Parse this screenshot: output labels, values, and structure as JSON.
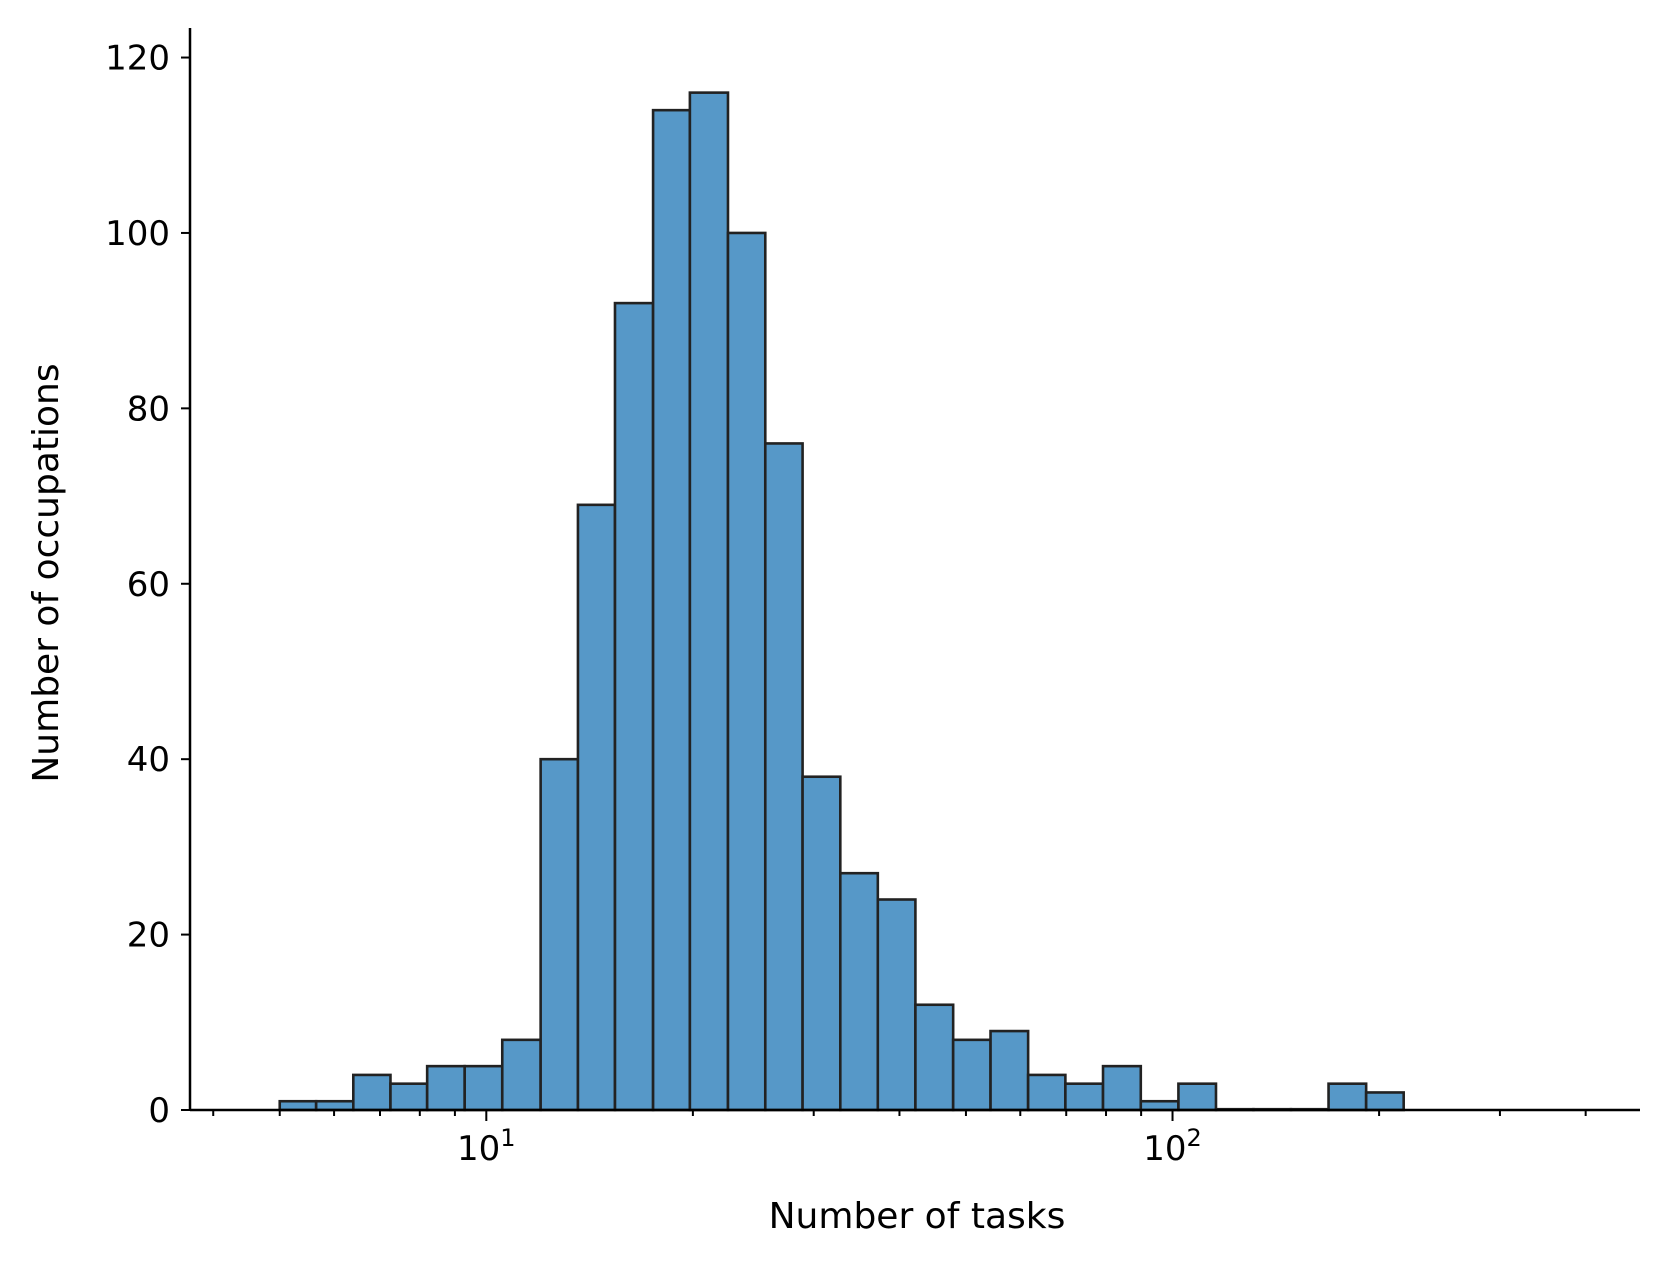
{
  "chart_data": {
    "type": "bar",
    "title": "",
    "xlabel": "Number of tasks",
    "ylabel": "Number of occupations",
    "x_scale": "log",
    "xlim": [
      3.7,
      480
    ],
    "ylim": [
      0,
      122
    ],
    "y_ticks": [
      0,
      20,
      40,
      60,
      80,
      100,
      120
    ],
    "x_major_ticks": [
      {
        "value": 10,
        "base": "10",
        "exp": "1"
      },
      {
        "value": 100,
        "base": "10",
        "exp": "2"
      }
    ],
    "x_minor_ticks": [
      4,
      5,
      6,
      7,
      8,
      9,
      20,
      30,
      40,
      50,
      60,
      70,
      80,
      90,
      200,
      300,
      400
    ],
    "grid": false,
    "legend": "none",
    "bar_color": "#5698c8",
    "edge_color": "#222222",
    "bins": [
      {
        "x0": 5.0,
        "x1": 5.65,
        "count": 1
      },
      {
        "x0": 5.65,
        "x1": 6.4,
        "count": 1
      },
      {
        "x0": 6.4,
        "x1": 7.25,
        "count": 4
      },
      {
        "x0": 7.25,
        "x1": 8.2,
        "count": 3
      },
      {
        "x0": 8.2,
        "x1": 9.3,
        "count": 5
      },
      {
        "x0": 9.3,
        "x1": 10.55,
        "count": 5
      },
      {
        "x0": 10.55,
        "x1": 12.0,
        "count": 8
      },
      {
        "x0": 12.0,
        "x1": 13.6,
        "count": 40
      },
      {
        "x0": 13.6,
        "x1": 15.4,
        "count": 69
      },
      {
        "x0": 15.4,
        "x1": 17.5,
        "count": 92
      },
      {
        "x0": 17.5,
        "x1": 19.8,
        "count": 114
      },
      {
        "x0": 19.8,
        "x1": 22.5,
        "count": 116
      },
      {
        "x0": 22.5,
        "x1": 25.5,
        "count": 100
      },
      {
        "x0": 25.5,
        "x1": 28.9,
        "count": 76
      },
      {
        "x0": 28.9,
        "x1": 32.8,
        "count": 38
      },
      {
        "x0": 32.8,
        "x1": 37.2,
        "count": 27
      },
      {
        "x0": 37.2,
        "x1": 42.2,
        "count": 24
      },
      {
        "x0": 42.2,
        "x1": 47.9,
        "count": 12
      },
      {
        "x0": 47.9,
        "x1": 54.3,
        "count": 8
      },
      {
        "x0": 54.3,
        "x1": 61.6,
        "count": 9
      },
      {
        "x0": 61.6,
        "x1": 69.8,
        "count": 4
      },
      {
        "x0": 69.8,
        "x1": 79.2,
        "count": 3
      },
      {
        "x0": 79.2,
        "x1": 89.9,
        "count": 5
      },
      {
        "x0": 89.9,
        "x1": 102.0,
        "count": 1
      },
      {
        "x0": 102.0,
        "x1": 115.7,
        "count": 3
      },
      {
        "x0": 115.7,
        "x1": 131.2,
        "count": 0
      },
      {
        "x0": 131.2,
        "x1": 148.8,
        "count": 0
      },
      {
        "x0": 148.8,
        "x1": 168.8,
        "count": 0
      },
      {
        "x0": 168.8,
        "x1": 191.5,
        "count": 3
      },
      {
        "x0": 191.5,
        "x1": 217.2,
        "count": 2
      }
    ]
  }
}
